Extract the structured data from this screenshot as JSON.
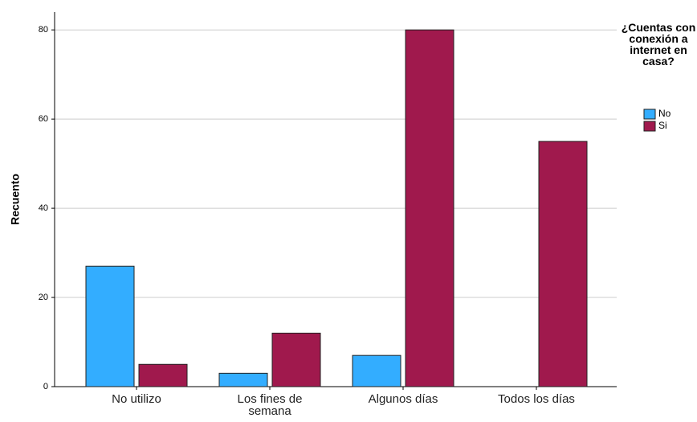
{
  "chart_data": {
    "type": "bar",
    "ylabel": "Recuento",
    "categories": [
      "No utilizo",
      "Los fines de semana",
      "Algunos días",
      "Todos los días"
    ],
    "series": [
      {
        "name": "No",
        "color": "#33adff",
        "values": [
          27,
          3,
          7,
          null
        ]
      },
      {
        "name": "Si",
        "color": "#a0194d",
        "values": [
          5,
          12,
          80,
          55
        ]
      }
    ],
    "legend_title": "¿Cuentas con conexión a internet en casa?",
    "ylim": [
      0,
      84
    ],
    "yticks": [
      0,
      20,
      40,
      60,
      80
    ],
    "grid": true,
    "legend": "right"
  }
}
